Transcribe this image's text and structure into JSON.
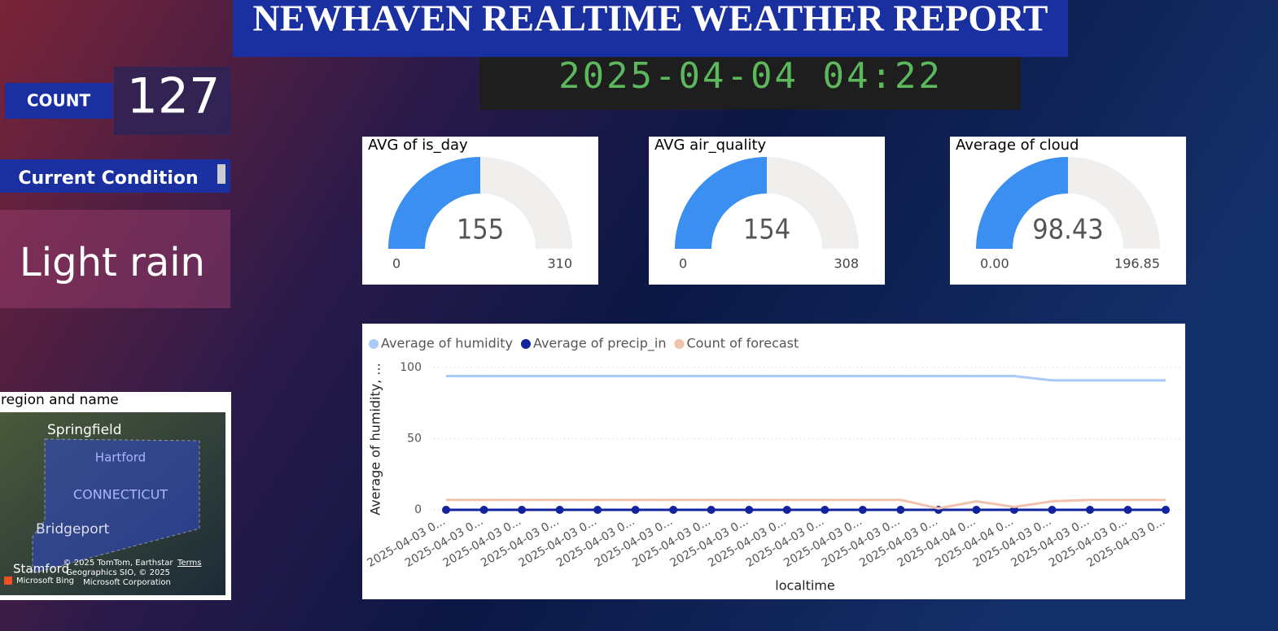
{
  "header": {
    "title": "NEWHAVEN REALTIME WEATHER REPORT",
    "datetime": "2025-04-04 04:22"
  },
  "count": {
    "label": "COUNT",
    "value": 127
  },
  "condition": {
    "label": "Current Condition",
    "value": "Light rain"
  },
  "gauges": [
    {
      "title": "AVG of is_day",
      "value": 155,
      "min": 0,
      "max": 310
    },
    {
      "title": "AVG air_quality",
      "value": 154,
      "min": 0,
      "max": 308
    },
    {
      "title": "Average of cloud",
      "value": 98.43,
      "min": {
        "value": 0,
        "label": "0.00"
      },
      "max": 196.85
    }
  ],
  "map": {
    "title": "region and name",
    "places": [
      "Springfield",
      "Hartford",
      "CONNECTICUT",
      "Bridgeport",
      "Stamford"
    ],
    "credits": [
      "© 2025 TomTom, Earthstar",
      "Geographics SIO, © 2025",
      "Microsoft Corporation"
    ],
    "terms": "Terms",
    "brand": "Microsoft Bing"
  },
  "chart_data": {
    "type": "line",
    "x_label": "localtime",
    "y_label": "Average of humidity, ...",
    "categories": [
      "2025-04-03 0...",
      "2025-04-03 0...",
      "2025-04-03 0...",
      "2025-04-03 0...",
      "2025-04-03 0...",
      "2025-04-03 0...",
      "2025-04-03 0...",
      "2025-04-03 0...",
      "2025-04-03 0...",
      "2025-04-03 0...",
      "2025-04-03 0...",
      "2025-04-03 0...",
      "2025-04-03 0...",
      "2025-04-03 0...",
      "2025-04-04 0...",
      "2025-04-04 0...",
      "2025-04-03 0...",
      "2025-04-03 0...",
      "2025-04-03 0...",
      "2025-04-03 0..."
    ],
    "series": [
      {
        "name": "Average of humidity",
        "color": "#a9cbf5",
        "values": [
          94,
          94,
          94,
          94,
          94,
          94,
          94,
          94,
          94,
          94,
          94,
          94,
          94,
          94,
          94,
          94,
          91,
          91,
          91,
          91
        ]
      },
      {
        "name": "Average of precip_in",
        "color": "#12239e",
        "values": [
          0,
          0,
          0,
          0,
          0,
          0,
          0,
          0,
          0,
          0,
          0,
          0,
          0,
          0,
          0,
          0,
          0,
          0,
          0,
          0
        ]
      },
      {
        "name": "Count of forecast",
        "color": "#f0c2ab",
        "values": [
          7,
          7,
          7,
          7,
          7,
          7,
          7,
          7,
          7,
          7,
          7,
          7,
          7,
          1,
          6,
          2,
          6,
          7,
          7,
          7
        ]
      }
    ],
    "ylim": [
      0,
      100
    ],
    "yticks": [
      0,
      50,
      100
    ],
    "grid": true
  }
}
